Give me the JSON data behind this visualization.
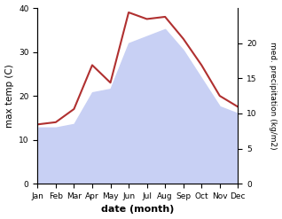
{
  "months": [
    "Jan",
    "Feb",
    "Mar",
    "Apr",
    "May",
    "Jun",
    "Jul",
    "Aug",
    "Sep",
    "Oct",
    "Nov",
    "Dec"
  ],
  "temp": [
    13.5,
    14.0,
    17.0,
    27.0,
    23.0,
    39.0,
    37.5,
    38.0,
    33.0,
    27.0,
    20.0,
    17.5
  ],
  "precip": [
    8.0,
    8.0,
    8.5,
    13.0,
    13.5,
    20.0,
    21.0,
    22.0,
    19.0,
    15.0,
    11.0,
    10.0
  ],
  "temp_color": "#b03030",
  "precip_fill_color": "#c8d0f4",
  "ylim_left": [
    0,
    40
  ],
  "ylim_right": [
    0,
    25
  ],
  "ylabel_left": "max temp (C)",
  "ylabel_right": "med. precipitation (kg/m2)",
  "xlabel": "date (month)",
  "left_ticks": [
    0,
    10,
    20,
    30,
    40
  ],
  "right_ticks": [
    0,
    5,
    10,
    15,
    20
  ],
  "bg_color": "#ffffff",
  "linewidth": 1.5,
  "ylabel_left_fontsize": 7.5,
  "ylabel_right_fontsize": 6.5,
  "xlabel_fontsize": 8,
  "tick_fontsize": 6.5
}
